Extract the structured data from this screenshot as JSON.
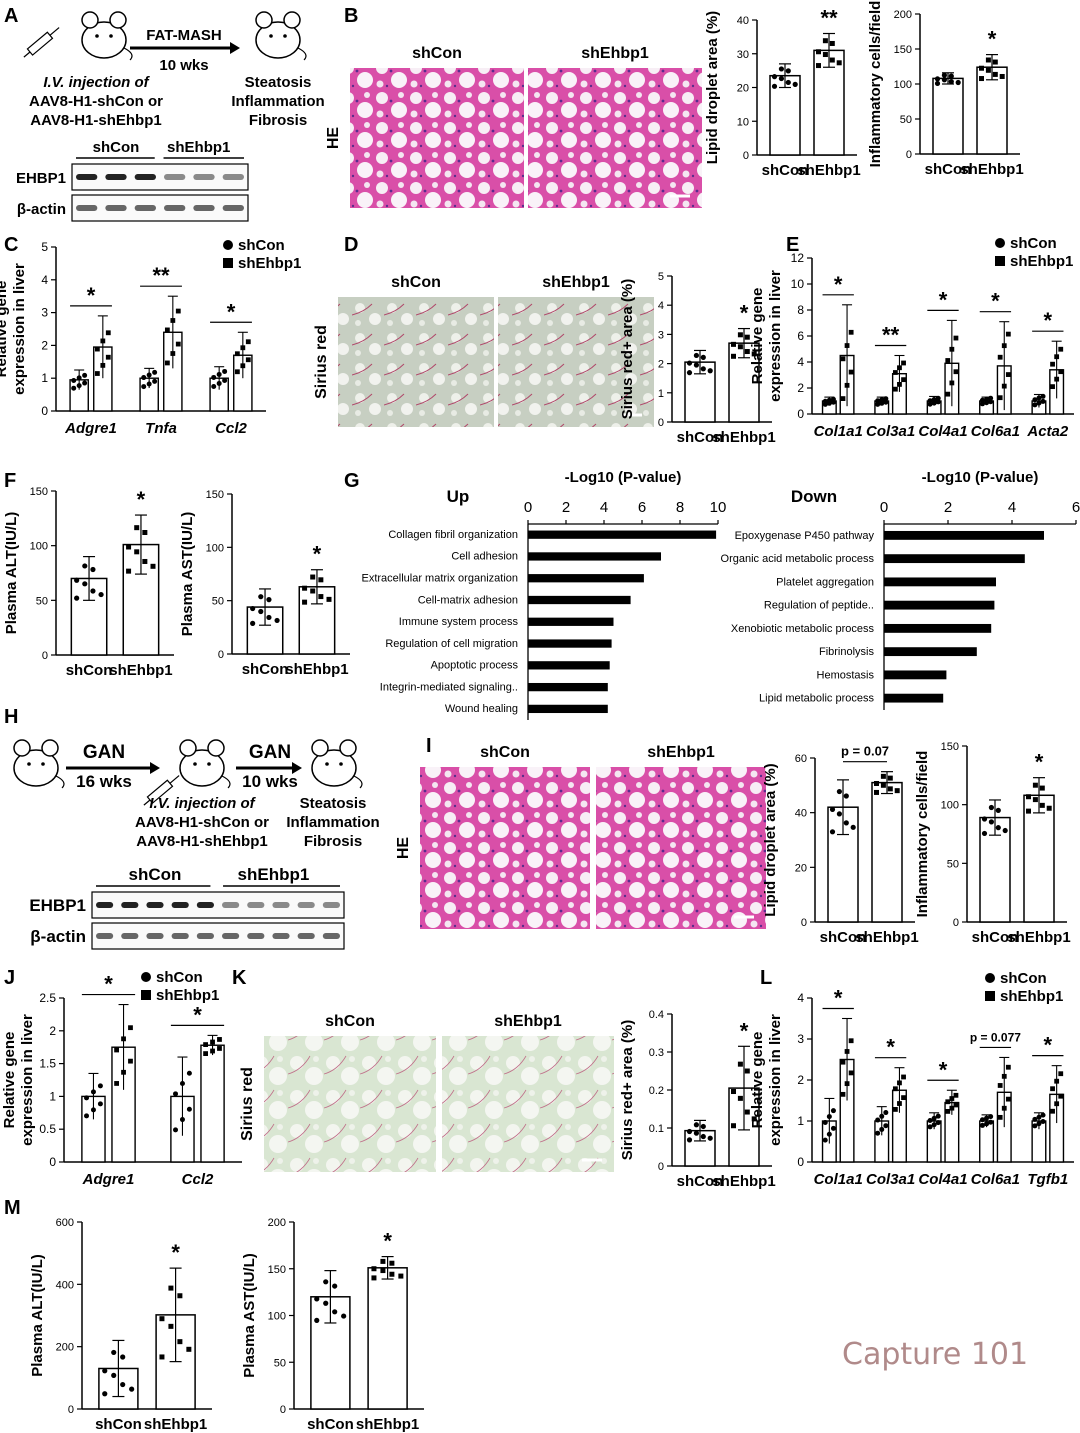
{
  "figure": {
    "panel_letters": [
      "A",
      "B",
      "C",
      "D",
      "E",
      "F",
      "G",
      "H",
      "I",
      "J",
      "K",
      "L",
      "M"
    ],
    "watermark": "Capture 101"
  },
  "schematic_A": {
    "arrow_label_top": "FAT-MASH",
    "arrow_label_bottom": "10 wks",
    "injection_lines": [
      "I.V. injection of",
      "AAV8-H1-shCon or",
      "AAV8-H1-shEhbp1"
    ],
    "outcome_lines": [
      "Steatosis",
      "Inflammation",
      "Fibrosis"
    ],
    "blot_groups": [
      "shCon",
      "shEhbp1"
    ],
    "blot_rows": [
      "EHBP1",
      "β-actin"
    ]
  },
  "schematic_H": {
    "arrow1_top": "GAN",
    "arrow1_bottom": "16 wks",
    "arrow2_top": "GAN",
    "arrow2_bottom": "10 wks",
    "injection_lines": [
      "I.V. injection of",
      "AAV8-H1-shCon or",
      "AAV8-H1-shEhbp1"
    ],
    "outcome_lines": [
      "Steatosis",
      "Inflammation",
      "Fibrosis"
    ],
    "blot_groups": [
      "shCon",
      "shEhbp1"
    ],
    "blot_rows": [
      "EHBP1",
      "β-actin"
    ]
  },
  "micrographs": {
    "B": {
      "stain": "HE",
      "groups": [
        "shCon",
        "shEhbp1"
      ]
    },
    "D": {
      "stain": "Sirius red",
      "groups": [
        "shCon",
        "shEhbp1"
      ]
    },
    "I": {
      "stain": "HE",
      "groups": [
        "shCon",
        "shEhbp1"
      ]
    },
    "K": {
      "stain": "Sirius red",
      "groups": [
        "shCon",
        "shEhbp1"
      ]
    }
  },
  "chart_data": [
    {
      "id": "B1",
      "type": "bar",
      "categories": [
        "shCon",
        "shEhbp1"
      ],
      "ylabel": "Lipid droplet area (%)",
      "ylim": [
        0,
        40
      ],
      "ticks": [
        0,
        10,
        20,
        30,
        40
      ],
      "values": [
        23.5,
        31
      ],
      "errors": [
        3.5,
        5
      ],
      "significance": "**"
    },
    {
      "id": "B2",
      "type": "bar",
      "categories": [
        "shCon",
        "shEhbp1"
      ],
      "ylabel": "Inflammatory cells/field",
      "ylim": [
        0,
        200
      ],
      "ticks": [
        0,
        50,
        100,
        150,
        200
      ],
      "values": [
        108,
        124
      ],
      "errors": [
        8,
        18
      ],
      "significance": "*"
    },
    {
      "id": "C",
      "type": "bar",
      "categories": [
        "Adgre1",
        "Tnfa",
        "Ccl2"
      ],
      "ylabel_lines": [
        "Relative gene",
        "expression in liver"
      ],
      "ylim": [
        0,
        5
      ],
      "ticks": [
        0,
        1,
        2,
        3,
        4,
        5
      ],
      "series": [
        {
          "name": "shCon",
          "values": [
            0.95,
            1.0,
            1.0
          ],
          "errors": [
            0.3,
            0.3,
            0.35
          ]
        },
        {
          "name": "shEhbp1",
          "values": [
            1.95,
            2.4,
            1.7
          ],
          "errors": [
            0.95,
            1.1,
            0.7
          ]
        }
      ],
      "significance": [
        "*",
        "**",
        "*"
      ],
      "legend": "top-right"
    },
    {
      "id": "D",
      "type": "bar",
      "categories": [
        "shCon",
        "shEhbp1"
      ],
      "ylabel": "Sirius red+ area (%)",
      "ylim": [
        0,
        5
      ],
      "ticks": [
        0,
        1,
        2,
        3,
        4,
        5
      ],
      "values": [
        2.05,
        2.7
      ],
      "errors": [
        0.4,
        0.5
      ],
      "significance": "*"
    },
    {
      "id": "E",
      "type": "bar",
      "categories": [
        "Col1a1",
        "Col3a1",
        "Col4a1",
        "Col6a1",
        "Acta2"
      ],
      "ylabel_lines": [
        "Relative gene",
        "expression in liver"
      ],
      "ylim": [
        0,
        12
      ],
      "ticks": [
        0,
        2,
        4,
        6,
        8,
        10,
        12
      ],
      "series": [
        {
          "name": "shCon",
          "values": [
            1.0,
            1.0,
            1.0,
            1.0,
            1.0
          ],
          "errors": [
            0.3,
            0.3,
            0.35,
            0.3,
            0.5
          ]
        },
        {
          "name": "shEhbp1",
          "values": [
            4.5,
            3.1,
            3.9,
            3.7,
            3.4
          ],
          "errors": [
            3.9,
            1.4,
            3.3,
            3.4,
            2.2
          ]
        }
      ],
      "significance": [
        "*",
        "**",
        "*",
        "*",
        "*"
      ],
      "legend": "top-right"
    },
    {
      "id": "F1",
      "type": "bar",
      "categories": [
        "shCon",
        "shEhbp1"
      ],
      "ylabel": "Plasma ALT(IU/L)",
      "ylim": [
        0,
        150
      ],
      "ticks": [
        0,
        50,
        100,
        150
      ],
      "values": [
        70,
        101
      ],
      "errors": [
        20,
        27
      ],
      "significance": "*"
    },
    {
      "id": "F2",
      "type": "bar",
      "categories": [
        "shCon",
        "shEhbp1"
      ],
      "ylabel": "Plasma AST(IU/L)",
      "ylim": [
        0,
        150
      ],
      "ticks": [
        0,
        50,
        100,
        150
      ],
      "values": [
        44,
        63
      ],
      "errors": [
        17,
        16
      ],
      "significance": "*"
    },
    {
      "id": "G1",
      "type": "barh",
      "title": "Up",
      "xlabel": "-Log10 (P-value)",
      "xlim": [
        0,
        10
      ],
      "ticks": [
        0,
        2,
        4,
        6,
        8,
        10
      ],
      "categories": [
        "Collagen fibril organization",
        "Cell adhesion",
        "Extracellular matrix organization",
        "Cell-matrix adhesion",
        "Immune system process",
        "Regulation of cell migration",
        "Apoptotic process",
        "Integrin-mediated signaling..",
        "Wound healing"
      ],
      "values": [
        9.9,
        7.0,
        6.1,
        5.4,
        4.5,
        4.4,
        4.3,
        4.2,
        4.2
      ]
    },
    {
      "id": "G2",
      "type": "barh",
      "title": "Down",
      "xlabel": "-Log10 (P-value)",
      "xlim": [
        0,
        6
      ],
      "ticks": [
        0,
        2,
        4,
        6
      ],
      "categories": [
        "Epoxygenase P450 pathway",
        "Organic acid metabolic process",
        "Platelet aggregation",
        "Regulation of peptide..",
        "Xenobiotic metabolic process",
        "Fibrinolysis",
        "Hemostasis",
        "Lipid metabolic process"
      ],
      "values": [
        5.0,
        4.4,
        3.5,
        3.45,
        3.35,
        2.9,
        1.95,
        1.85
      ]
    },
    {
      "id": "I1",
      "type": "bar",
      "categories": [
        "shCon",
        "shEhbp1"
      ],
      "ylabel": "Lipid droplet area (%)",
      "ylim": [
        0,
        60
      ],
      "ticks": [
        0,
        20,
        40,
        60
      ],
      "values": [
        42,
        51
      ],
      "errors": [
        10,
        4
      ],
      "significance": "p = 0.07"
    },
    {
      "id": "I2",
      "type": "bar",
      "categories": [
        "shCon",
        "shEhbp1"
      ],
      "ylabel": "Inflammatory cells/field",
      "ylim": [
        0,
        150
      ],
      "ticks": [
        0,
        50,
        100,
        150
      ],
      "values": [
        89,
        108
      ],
      "errors": [
        15,
        15
      ],
      "significance": "*"
    },
    {
      "id": "J",
      "type": "bar",
      "categories": [
        "Adgre1",
        "Ccl2"
      ],
      "ylabel_lines": [
        "Relative gene",
        "expression in liver"
      ],
      "ylim": [
        0,
        2.5
      ],
      "ticks": [
        0,
        0.5,
        1,
        1.5,
        2,
        2.5
      ],
      "series": [
        {
          "name": "shCon",
          "values": [
            1.0,
            1.0
          ],
          "errors": [
            0.35,
            0.6
          ]
        },
        {
          "name": "shEhbp1",
          "values": [
            1.75,
            1.78
          ],
          "errors": [
            0.65,
            0.15
          ]
        }
      ],
      "significance": [
        "*",
        "*"
      ],
      "legend": "top-right"
    },
    {
      "id": "K",
      "type": "bar",
      "categories": [
        "shCon",
        "shEhbp1"
      ],
      "ylabel": "Sirius red+ area (%)",
      "ylim": [
        0,
        0.4
      ],
      "ticks": [
        0,
        0.1,
        0.2,
        0.3,
        0.4
      ],
      "values": [
        0.093,
        0.205
      ],
      "errors": [
        0.027,
        0.11
      ],
      "significance": "*"
    },
    {
      "id": "L",
      "type": "bar",
      "categories": [
        "Col1a1",
        "Col3a1",
        "Col4a1",
        "Col6a1",
        "Tgfb1"
      ],
      "ylabel_lines": [
        "Relative gene",
        "expression in liver"
      ],
      "ylim": [
        0,
        4
      ],
      "ticks": [
        0,
        1,
        2,
        3,
        4
      ],
      "series": [
        {
          "name": "shCon",
          "values": [
            1.0,
            1.0,
            1.0,
            1.0,
            1.0
          ],
          "errors": [
            0.55,
            0.35,
            0.2,
            0.15,
            0.2
          ]
        },
        {
          "name": "shEhbp1",
          "values": [
            2.5,
            1.75,
            1.45,
            1.7,
            1.65
          ],
          "errors": [
            1.0,
            0.55,
            0.3,
            0.85,
            0.7
          ]
        }
      ],
      "significance": [
        "*",
        "*",
        "*",
        "p = 0.077",
        "*"
      ],
      "legend": "top-right"
    },
    {
      "id": "M1",
      "type": "bar",
      "categories": [
        "shCon",
        "shEhbp1"
      ],
      "ylabel": "Plasma ALT(IU/L)",
      "ylim": [
        0,
        600
      ],
      "ticks": [
        0,
        200,
        400,
        600
      ],
      "values": [
        130,
        302
      ],
      "errors": [
        90,
        150
      ],
      "significance": "*"
    },
    {
      "id": "M2",
      "type": "bar",
      "categories": [
        "shCon",
        "shEhbp1"
      ],
      "ylabel": "Plasma AST(IU/L)",
      "ylim": [
        0,
        200
      ],
      "ticks": [
        0,
        50,
        100,
        150,
        200
      ],
      "values": [
        120,
        151
      ],
      "errors": [
        28,
        12
      ],
      "significance": "*"
    }
  ]
}
